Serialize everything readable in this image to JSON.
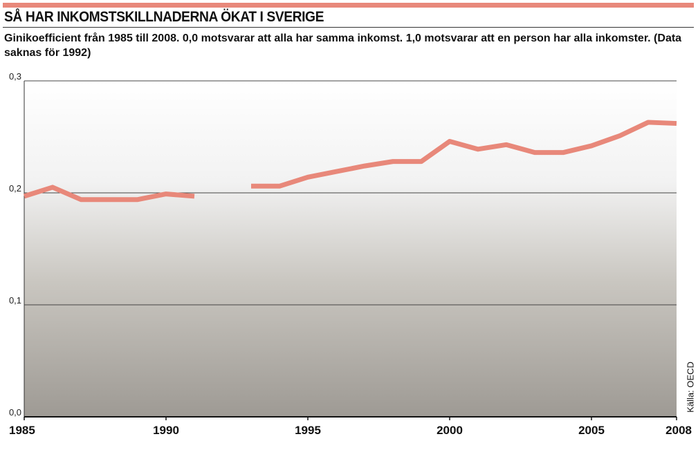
{
  "chart_data": {
    "type": "line",
    "title": "SÅ HAR INKOMSTSKILLNADERNA ÖKAT I SVERIGE",
    "subtitle": "Ginikoefficient från 1985 till 2008. 0,0 motsvarar att alla har samma inkomst. 1,0 motsvarar att en person har alla inkomster. (Data saknas för 1992)",
    "source": "Källa: OECD",
    "x": [
      1985,
      1986,
      1987,
      1988,
      1989,
      1990,
      1991,
      1992,
      1993,
      1994,
      1995,
      1996,
      1997,
      1998,
      1999,
      2000,
      2001,
      2002,
      2003,
      2004,
      2005,
      2006,
      2007,
      2008
    ],
    "series": [
      {
        "color": "#e8887a",
        "values": [
          0.197,
          0.205,
          0.194,
          0.194,
          0.194,
          0.199,
          0.197,
          null,
          0.206,
          0.206,
          0.214,
          0.219,
          0.224,
          0.228,
          0.228,
          0.246,
          0.239,
          0.243,
          0.236,
          0.236,
          0.242,
          0.251,
          0.263,
          0.262
        ]
      }
    ],
    "xlim": [
      1985,
      2008
    ],
    "xticks": [
      1985,
      1990,
      1995,
      2000,
      2005,
      2008
    ],
    "ylim": [
      0,
      0.3
    ],
    "yticks": [
      {
        "value": 0,
        "label": "0,0"
      },
      {
        "value": 0.1,
        "label": "0,1"
      },
      {
        "value": 0.2,
        "label": "0,2"
      },
      {
        "value": 0.3,
        "label": "0,3"
      }
    ],
    "grid": true
  }
}
